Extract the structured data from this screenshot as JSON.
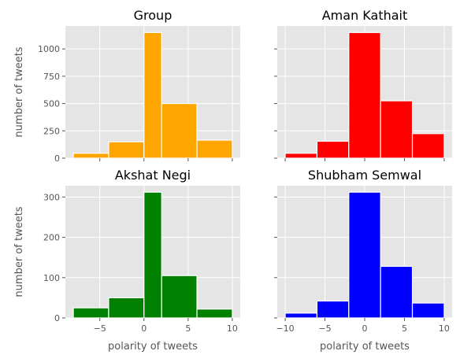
{
  "chart_data": [
    {
      "type": "bar",
      "title": "Group",
      "color": "#ffa500",
      "xlabel": "",
      "ylabel": "number of tweets",
      "bins": [
        [
          -8,
          -4
        ],
        [
          -4,
          0
        ],
        [
          0,
          2
        ],
        [
          2,
          6
        ],
        [
          6,
          10
        ]
      ],
      "values": [
        45,
        150,
        1150,
        500,
        165
      ],
      "ylim": [
        0,
        1210
      ],
      "yticks": [
        "0",
        "250",
        "500",
        "750",
        "1000"
      ],
      "xticks": [],
      "xlim": [
        -8.9,
        10.9
      ]
    },
    {
      "type": "bar",
      "title": "Aman Kathait",
      "color": "#ff0000",
      "xlabel": "",
      "ylabel": "",
      "bins": [
        [
          -10,
          -6
        ],
        [
          -6,
          -2
        ],
        [
          -2,
          2
        ],
        [
          2,
          6
        ],
        [
          6,
          10
        ]
      ],
      "values": [
        45,
        155,
        1150,
        525,
        225
      ],
      "ylim": [
        0,
        1210
      ],
      "yticks": [],
      "xticks": [],
      "xlim": [
        -11,
        11
      ]
    },
    {
      "type": "bar",
      "title": "Akshat Negi",
      "color": "#008000",
      "xlabel": "polarity of tweets",
      "ylabel": "number of tweets",
      "bins": [
        [
          -8,
          -4
        ],
        [
          -4,
          0
        ],
        [
          0,
          2
        ],
        [
          2,
          6
        ],
        [
          6,
          10
        ]
      ],
      "values": [
        25,
        50,
        312,
        105,
        22
      ],
      "ylim": [
        0,
        328
      ],
      "yticks": [
        "0",
        "100",
        "200",
        "300"
      ],
      "xticks": [
        "−5",
        "0",
        "5",
        "10"
      ],
      "xlim": [
        -8.9,
        10.9
      ]
    },
    {
      "type": "bar",
      "title": "Shubham Semwal",
      "color": "#0000ff",
      "xlabel": "polarity of tweets",
      "ylabel": "",
      "bins": [
        [
          -10,
          -6
        ],
        [
          -6,
          -2
        ],
        [
          -2,
          2
        ],
        [
          2,
          6
        ],
        [
          6,
          10
        ]
      ],
      "values": [
        12,
        42,
        312,
        128,
        37
      ],
      "ylim": [
        0,
        328
      ],
      "yticks": [],
      "xticks": [
        "−10",
        "−5",
        "0",
        "5",
        "10"
      ],
      "xlim": [
        -11,
        11
      ]
    }
  ]
}
